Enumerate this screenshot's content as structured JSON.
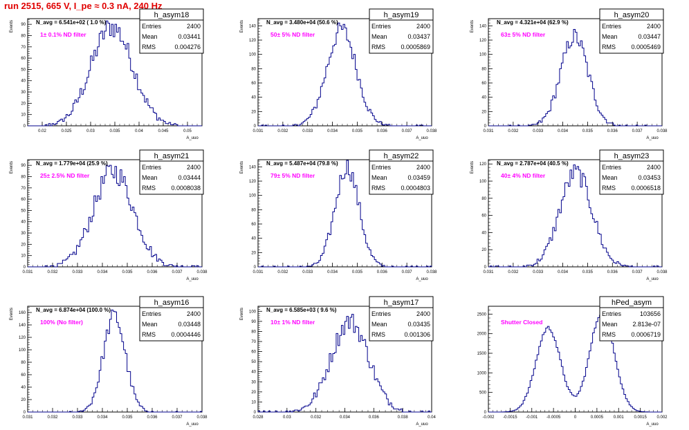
{
  "page_title": "run 2515,   665 V, I_pe ≈ 0.3 nA, 240 Hz",
  "stat_labels": {
    "entries": "Entries",
    "mean": "Mean",
    "rms": "RMS"
  },
  "colors": {
    "histogram_line": "#00008b",
    "annotation": "#ff00ff",
    "title": "#e00000"
  },
  "chart_data": [
    {
      "type": "histogram",
      "name": "h_asym18",
      "navg_label": "N_avg = 6.541e+02 ( 1.0 %)",
      "filter_label": "1± 0.1% ND filter",
      "stats": {
        "entries": "2400",
        "mean": "0.03441",
        "rms": "0.004276"
      },
      "ylabel": "Events",
      "xlabel": "A_uuo",
      "xlim": [
        0.017,
        0.053
      ],
      "ylim": [
        0,
        95
      ],
      "xticks": [
        "0.02",
        "0.025",
        "0.03",
        "0.035",
        "0.04",
        "0.045",
        "0.05"
      ],
      "yticks": [
        "0",
        "10",
        "20",
        "30",
        "40",
        "50",
        "60",
        "70",
        "80",
        "90"
      ],
      "peak": {
        "mean": 0.0344,
        "sigma": 0.0043,
        "height": 88
      },
      "nbins": 100
    },
    {
      "type": "histogram",
      "name": "h_asym19",
      "navg_label": "N_avg = 3.480e+04 (50.6 %)",
      "filter_label": "50± 5% ND filter",
      "stats": {
        "entries": "2400",
        "mean": "0.03437",
        "rms": "0.0005869"
      },
      "ylabel": "Events",
      "xlabel": "A_uuo",
      "xlim": [
        0.031,
        0.038
      ],
      "ylim": [
        0,
        150
      ],
      "xticks": [
        "0.031",
        "0.032",
        "0.033",
        "0.034",
        "0.035",
        "0.036",
        "0.037",
        "0.038"
      ],
      "yticks": [
        "0",
        "20",
        "40",
        "60",
        "80",
        "100",
        "120",
        "140"
      ],
      "peak": {
        "mean": 0.03437,
        "sigma": 0.00059,
        "height": 135
      },
      "nbins": 100
    },
    {
      "type": "histogram",
      "name": "h_asym20",
      "navg_label": "N_avg = 4.321e+04 (62.9 %)",
      "filter_label": "63± 5% ND filter",
      "stats": {
        "entries": "2400",
        "mean": "0.03447",
        "rms": "0.0005469"
      },
      "ylabel": "Events",
      "xlabel": "A_uuo",
      "xlim": [
        0.031,
        0.038
      ],
      "ylim": [
        0,
        150
      ],
      "xticks": [
        "0.031",
        "0.032",
        "0.033",
        "0.034",
        "0.035",
        "0.036",
        "0.037",
        "0.038"
      ],
      "yticks": [
        "0",
        "20",
        "40",
        "60",
        "80",
        "100",
        "120",
        "140"
      ],
      "peak": {
        "mean": 0.03447,
        "sigma": 0.00055,
        "height": 125
      },
      "nbins": 100
    },
    {
      "type": "histogram",
      "name": "h_asym21",
      "navg_label": "N_avg = 1.779e+04 (25.9 %)",
      "filter_label": "25± 2.5% ND filter",
      "stats": {
        "entries": "2400",
        "mean": "0.03444",
        "rms": "0.0008038"
      },
      "ylabel": "Events",
      "xlabel": "A_uuo",
      "xlim": [
        0.031,
        0.038
      ],
      "ylim": [
        0,
        95
      ],
      "xticks": [
        "0.031",
        "0.032",
        "0.033",
        "0.034",
        "0.035",
        "0.036",
        "0.037",
        "0.038"
      ],
      "yticks": [
        "0",
        "10",
        "20",
        "30",
        "40",
        "50",
        "60",
        "70",
        "80",
        "90"
      ],
      "peak": {
        "mean": 0.03444,
        "sigma": 0.0008,
        "height": 85
      },
      "nbins": 100
    },
    {
      "type": "histogram",
      "name": "h_asym22",
      "navg_label": "N_avg = 5.487e+04 (79.8 %)",
      "filter_label": "79± 5% ND filter",
      "stats": {
        "entries": "2400",
        "mean": "0.03459",
        "rms": "0.0004803"
      },
      "ylabel": "Events",
      "xlabel": "A_uuo",
      "xlim": [
        0.031,
        0.038
      ],
      "ylim": [
        0,
        150
      ],
      "xticks": [
        "0.031",
        "0.032",
        "0.033",
        "0.034",
        "0.035",
        "0.036",
        "0.037",
        "0.038"
      ],
      "yticks": [
        "0",
        "20",
        "40",
        "60",
        "80",
        "100",
        "120",
        "140"
      ],
      "peak": {
        "mean": 0.03459,
        "sigma": 0.00048,
        "height": 140
      },
      "nbins": 100
    },
    {
      "type": "histogram",
      "name": "h_asym23",
      "navg_label": "N_avg = 2.787e+04 (40.5 %)",
      "filter_label": "40± 4% ND filter",
      "stats": {
        "entries": "2400",
        "mean": "0.03453",
        "rms": "0.0006518"
      },
      "ylabel": "Events",
      "xlabel": "A_uuo",
      "xlim": [
        0.031,
        0.038
      ],
      "ylim": [
        0,
        125
      ],
      "xticks": [
        "0.031",
        "0.032",
        "0.033",
        "0.034",
        "0.035",
        "0.036",
        "0.037",
        "0.038"
      ],
      "yticks": [
        "0",
        "20",
        "40",
        "60",
        "80",
        "100",
        "120"
      ],
      "peak": {
        "mean": 0.03453,
        "sigma": 0.00065,
        "height": 110
      },
      "nbins": 100
    },
    {
      "type": "histogram",
      "name": "h_asym16",
      "navg_label": "N_avg = 6.874e+04 (100.0 %)",
      "filter_label": "100% (No filter)",
      "stats": {
        "entries": "2400",
        "mean": "0.03448",
        "rms": "0.0004446"
      },
      "ylabel": "Events",
      "xlabel": "A_uuo",
      "xlim": [
        0.031,
        0.038
      ],
      "ylim": [
        0,
        170
      ],
      "xticks": [
        "0.031",
        "0.032",
        "0.033",
        "0.034",
        "0.035",
        "0.036",
        "0.037",
        "0.038"
      ],
      "yticks": [
        "0",
        "20",
        "40",
        "60",
        "80",
        "100",
        "120",
        "140",
        "160"
      ],
      "peak": {
        "mean": 0.03448,
        "sigma": 0.00044,
        "height": 155
      },
      "nbins": 100
    },
    {
      "type": "histogram",
      "name": "h_asym17",
      "navg_label": "N_avg = 6.585e+03 ( 9.6 %)",
      "filter_label": "10± 1% ND filter",
      "stats": {
        "entries": "2400",
        "mean": "0.03435",
        "rms": "0.001306"
      },
      "ylabel": "Events",
      "xlabel": "A_uuo",
      "xlim": [
        0.028,
        0.04
      ],
      "ylim": [
        0,
        105
      ],
      "xticks": [
        "0.028",
        "0.03",
        "0.032",
        "0.034",
        "0.036",
        "0.038",
        "0.04"
      ],
      "yticks": [
        "0",
        "10",
        "20",
        "30",
        "40",
        "50",
        "60",
        "70",
        "80",
        "90",
        "100"
      ],
      "peak": {
        "mean": 0.03435,
        "sigma": 0.0013,
        "height": 90
      },
      "nbins": 100
    },
    {
      "type": "histogram",
      "name": "hPed_asym",
      "navg_label": "",
      "filter_label": "Shutter Closed",
      "stats": {
        "entries": "103656",
        "mean": "2.813e-07",
        "rms": "0.0006719"
      },
      "ylabel": "",
      "xlabel": "A_uuo",
      "xlim": [
        -0.002,
        0.002
      ],
      "ylim": [
        0,
        2700
      ],
      "xticks": [
        "-0.002",
        "-0.0015",
        "-0.001",
        "-0.0005",
        "0",
        "0.0005",
        "0.001",
        "0.0015",
        "0.002"
      ],
      "yticks": [
        "0",
        "500",
        "1000",
        "1500",
        "2000",
        "2500"
      ],
      "peaks": [
        {
          "mean": -0.00062,
          "sigma": 0.00028,
          "height": 2150
        },
        {
          "mean": 0.00062,
          "sigma": 0.00028,
          "height": 2550
        }
      ],
      "nbins": 100
    }
  ]
}
